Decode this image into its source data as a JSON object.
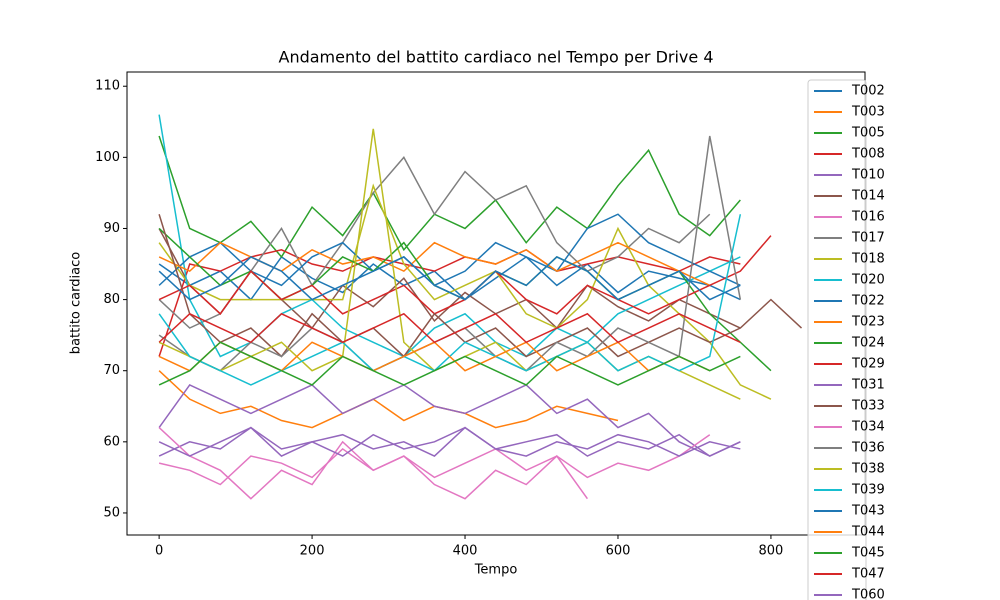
{
  "chart_data": {
    "type": "line",
    "title": "Andamento del battito cardiaco nel Tempo per Drive 4",
    "x_label": "Tempo",
    "y_label": "battito cardiaco",
    "x": [
      0,
      40,
      80,
      120,
      160,
      200,
      240,
      280,
      320,
      360,
      400,
      440,
      480,
      520,
      560,
      600,
      640,
      680,
      720,
      760,
      800,
      840
    ],
    "xlim": [
      -42,
      923
    ],
    "ylim": [
      46.9,
      112
    ],
    "xticks": [
      0,
      200,
      400,
      600,
      800
    ],
    "yticks": [
      50,
      60,
      70,
      80,
      90,
      100,
      110
    ],
    "legend": "upper right",
    "series": [
      {
        "name": "T002",
        "color": "#1f77b4",
        "values": [
          85,
          82,
          84,
          80,
          86,
          83,
          81,
          85,
          82,
          84,
          80,
          83,
          86,
          82,
          85,
          81,
          84,
          83,
          82,
          80,
          null,
          null
        ]
      },
      {
        "name": "T003",
        "color": "#ff7f0e",
        "values": [
          70,
          66,
          64,
          65,
          63,
          62,
          64,
          66,
          63,
          65,
          64,
          62,
          63,
          65,
          64,
          63,
          null,
          null,
          null,
          null,
          null,
          null
        ]
      },
      {
        "name": "T005",
        "color": "#2ca02c",
        "values": [
          103,
          90,
          88,
          91,
          86,
          93,
          89,
          95,
          87,
          92,
          90,
          94,
          88,
          93,
          90,
          96,
          101,
          92,
          89,
          94,
          null,
          null
        ]
      },
      {
        "name": "T008",
        "color": "#d62728",
        "values": [
          72,
          85,
          84,
          86,
          87,
          85,
          84,
          86,
          85,
          84,
          86,
          85,
          87,
          84,
          85,
          86,
          85,
          84,
          86,
          85,
          null,
          null
        ]
      },
      {
        "name": "T010",
        "color": "#9467bd",
        "values": [
          58,
          60,
          59,
          62,
          58,
          60,
          61,
          59,
          60,
          58,
          62,
          59,
          60,
          61,
          58,
          60,
          59,
          61,
          58,
          60,
          null,
          null
        ]
      },
      {
        "name": "T014",
        "color": "#8c564b",
        "values": [
          90,
          82,
          78,
          84,
          80,
          76,
          82,
          79,
          83,
          77,
          81,
          78,
          80,
          76,
          82,
          79,
          77,
          80,
          78,
          76,
          null,
          null
        ]
      },
      {
        "name": "T016",
        "color": "#e377c2",
        "values": [
          57,
          56,
          54,
          58,
          57,
          55,
          59,
          56,
          58,
          55,
          57,
          59,
          56,
          58,
          55,
          57,
          56,
          58,
          61,
          null,
          null,
          null
        ]
      },
      {
        "name": "T017",
        "color": "#7f7f7f",
        "values": [
          80,
          76,
          78,
          84,
          90,
          82,
          88,
          95,
          100,
          92,
          98,
          94,
          96,
          88,
          84,
          86,
          90,
          88,
          92,
          null,
          null,
          null
        ]
      },
      {
        "name": "T018",
        "color": "#bcbd22",
        "values": [
          88,
          82,
          80,
          80,
          80,
          80,
          80,
          96,
          85,
          80,
          82,
          84,
          78,
          76,
          80,
          90,
          82,
          78,
          74,
          68,
          66,
          null
        ]
      },
      {
        "name": "T020",
        "color": "#17becf",
        "values": [
          106,
          80,
          72,
          74,
          78,
          80,
          76,
          74,
          72,
          76,
          78,
          74,
          72,
          76,
          74,
          78,
          80,
          82,
          84,
          86,
          null,
          null
        ]
      },
      {
        "name": "T022",
        "color": "#1f77b4",
        "values": [
          82,
          86,
          88,
          84,
          82,
          86,
          88,
          84,
          86,
          82,
          84,
          88,
          86,
          84,
          90,
          92,
          88,
          86,
          84,
          82,
          null,
          null
        ]
      },
      {
        "name": "T023",
        "color": "#ff7f0e",
        "values": [
          86,
          84,
          88,
          86,
          84,
          87,
          85,
          86,
          84,
          88,
          86,
          85,
          87,
          84,
          86,
          88,
          86,
          84,
          82,
          null,
          null,
          null
        ]
      },
      {
        "name": "T024",
        "color": "#2ca02c",
        "values": [
          90,
          86,
          82,
          84,
          80,
          82,
          86,
          84,
          88,
          82,
          80,
          84,
          82,
          86,
          84,
          80,
          82,
          84,
          78,
          74,
          70,
          null
        ]
      },
      {
        "name": "T029",
        "color": "#d62728",
        "values": [
          80,
          82,
          78,
          84,
          80,
          82,
          78,
          80,
          82,
          78,
          80,
          84,
          80,
          78,
          82,
          80,
          78,
          80,
          82,
          84,
          89,
          null
        ]
      },
      {
        "name": "T031",
        "color": "#9467bd",
        "values": [
          62,
          68,
          66,
          64,
          66,
          68,
          64,
          66,
          68,
          65,
          64,
          66,
          68,
          64,
          66,
          62,
          64,
          60,
          58,
          60,
          null,
          null
        ]
      },
      {
        "name": "T033",
        "color": "#8c564b",
        "values": [
          92,
          78,
          74,
          76,
          72,
          78,
          74,
          76,
          72,
          78,
          74,
          76,
          72,
          74,
          76,
          72,
          74,
          76,
          74,
          76,
          80,
          76
        ]
      },
      {
        "name": "T034",
        "color": "#e377c2",
        "values": [
          62,
          58,
          56,
          52,
          56,
          54,
          60,
          56,
          58,
          54,
          52,
          56,
          54,
          58,
          52,
          null,
          null,
          null,
          null,
          null,
          null,
          null
        ]
      },
      {
        "name": "T036",
        "color": "#7f7f7f",
        "values": [
          75,
          72,
          70,
          74,
          72,
          76,
          74,
          70,
          72,
          74,
          76,
          72,
          70,
          74,
          72,
          76,
          74,
          72,
          103,
          80,
          null,
          null
        ]
      },
      {
        "name": "T038",
        "color": "#bcbd22",
        "values": [
          74,
          72,
          70,
          72,
          74,
          70,
          72,
          104,
          74,
          70,
          72,
          74,
          70,
          72,
          74,
          70,
          72,
          70,
          68,
          66,
          null,
          null
        ]
      },
      {
        "name": "T039",
        "color": "#17becf",
        "values": [
          78,
          72,
          70,
          68,
          70,
          72,
          74,
          70,
          72,
          70,
          74,
          72,
          70,
          72,
          74,
          70,
          72,
          70,
          72,
          92,
          null,
          null
        ]
      },
      {
        "name": "T043",
        "color": "#1f77b4",
        "values": [
          84,
          80,
          82,
          86,
          84,
          80,
          82,
          84,
          86,
          82,
          80,
          84,
          82,
          86,
          84,
          80,
          82,
          84,
          80,
          82,
          null,
          null
        ]
      },
      {
        "name": "T044",
        "color": "#ff7f0e",
        "values": [
          72,
          70,
          74,
          72,
          70,
          74,
          72,
          70,
          72,
          74,
          70,
          72,
          74,
          70,
          72,
          74,
          70,
          72,
          70,
          null,
          null,
          null
        ]
      },
      {
        "name": "T045",
        "color": "#2ca02c",
        "values": [
          68,
          70,
          74,
          72,
          70,
          68,
          72,
          70,
          68,
          70,
          72,
          70,
          68,
          72,
          70,
          68,
          70,
          72,
          70,
          72,
          null,
          null
        ]
      },
      {
        "name": "T047",
        "color": "#d62728",
        "values": [
          74,
          78,
          76,
          74,
          78,
          76,
          74,
          76,
          78,
          74,
          76,
          78,
          74,
          76,
          78,
          74,
          76,
          78,
          76,
          74,
          null,
          null
        ]
      },
      {
        "name": "T060",
        "color": "#9467bd",
        "values": [
          60,
          58,
          60,
          62,
          59,
          60,
          58,
          61,
          59,
          60,
          62,
          59,
          58,
          60,
          59,
          61,
          60,
          58,
          60,
          59,
          null,
          null
        ]
      }
    ]
  }
}
